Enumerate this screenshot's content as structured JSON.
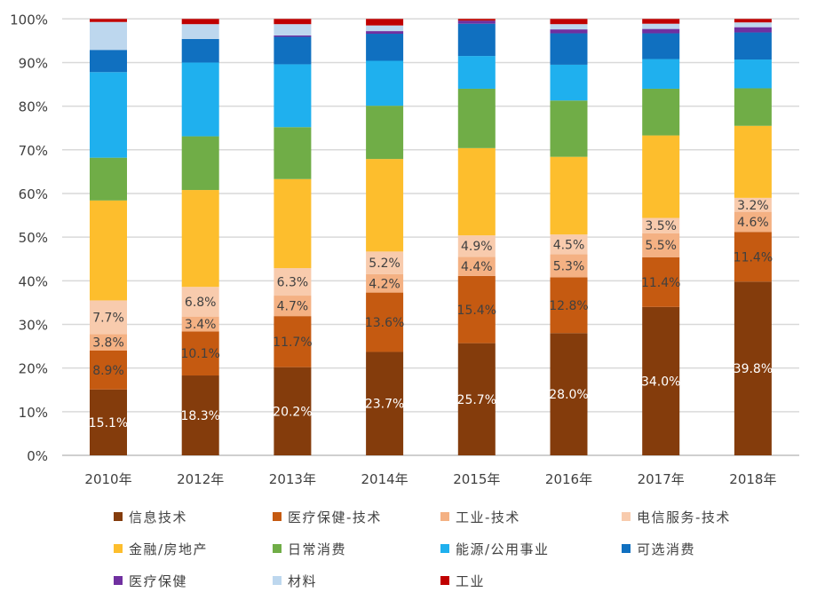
{
  "chart_data": {
    "type": "bar",
    "stacked": true,
    "title": "",
    "xlabel": "",
    "ylabel": "",
    "ylim": [
      0,
      100
    ],
    "yticks": [
      "0%",
      "10%",
      "20%",
      "30%",
      "40%",
      "50%",
      "60%",
      "70%",
      "80%",
      "90%",
      "100%"
    ],
    "grid": true,
    "legend_position": "bottom",
    "categories": [
      "2010年",
      "2012年",
      "2013年",
      "2014年",
      "2015年",
      "2016年",
      "2017年",
      "2018年"
    ],
    "series": [
      {
        "name": "信息技术",
        "color": "#843C0C",
        "label_color": "#ffffff",
        "labeled": true,
        "values": [
          15.1,
          18.3,
          20.2,
          23.7,
          25.7,
          28.0,
          34.0,
          39.8
        ]
      },
      {
        "name": "医疗保健-技术",
        "color": "#C55A11",
        "label_color": "#404040",
        "labeled": true,
        "values": [
          8.9,
          10.1,
          11.7,
          13.6,
          15.4,
          12.8,
          11.4,
          11.4
        ]
      },
      {
        "name": "工业-技术",
        "color": "#F4B183",
        "label_color": "#404040",
        "labeled": true,
        "values": [
          3.8,
          3.4,
          4.7,
          4.2,
          4.4,
          5.3,
          5.5,
          4.6
        ]
      },
      {
        "name": "电信服务-技术",
        "color": "#F8CBAD",
        "label_color": "#404040",
        "labeled": true,
        "values": [
          7.7,
          6.8,
          6.3,
          5.2,
          4.9,
          4.5,
          3.5,
          3.2
        ]
      },
      {
        "name": "金融/房地产",
        "color": "#FDBE2D",
        "labeled": false,
        "values": [
          22.9,
          22.2,
          20.4,
          21.2,
          20.0,
          17.8,
          18.9,
          16.5
        ]
      },
      {
        "name": "日常消费",
        "color": "#70AD47",
        "labeled": false,
        "values": [
          9.8,
          12.3,
          11.9,
          12.2,
          13.6,
          12.9,
          10.7,
          8.6
        ]
      },
      {
        "name": "能源/公用事业",
        "color": "#1FB0EE",
        "labeled": false,
        "values": [
          19.6,
          16.9,
          14.4,
          10.3,
          7.5,
          8.2,
          6.8,
          6.6
        ]
      },
      {
        "name": "可选消费",
        "color": "#1070C0",
        "labeled": false,
        "values": [
          5.1,
          5.4,
          6.3,
          6.2,
          7.4,
          7.2,
          5.9,
          6.2
        ]
      },
      {
        "name": "医疗保健",
        "color": "#7030A0",
        "labeled": false,
        "values": [
          0.0,
          0.0,
          0.3,
          0.6,
          0.7,
          0.9,
          1.0,
          1.2
        ]
      },
      {
        "name": "材料",
        "color": "#BDD7EE",
        "labeled": false,
        "values": [
          6.4,
          3.4,
          2.6,
          1.3,
          0.0,
          1.2,
          1.2,
          1.1
        ]
      },
      {
        "name": "工业",
        "color": "#C00000",
        "labeled": false,
        "values": [
          0.7,
          1.2,
          1.2,
          1.5,
          0.4,
          1.2,
          1.1,
          0.8
        ]
      }
    ]
  }
}
